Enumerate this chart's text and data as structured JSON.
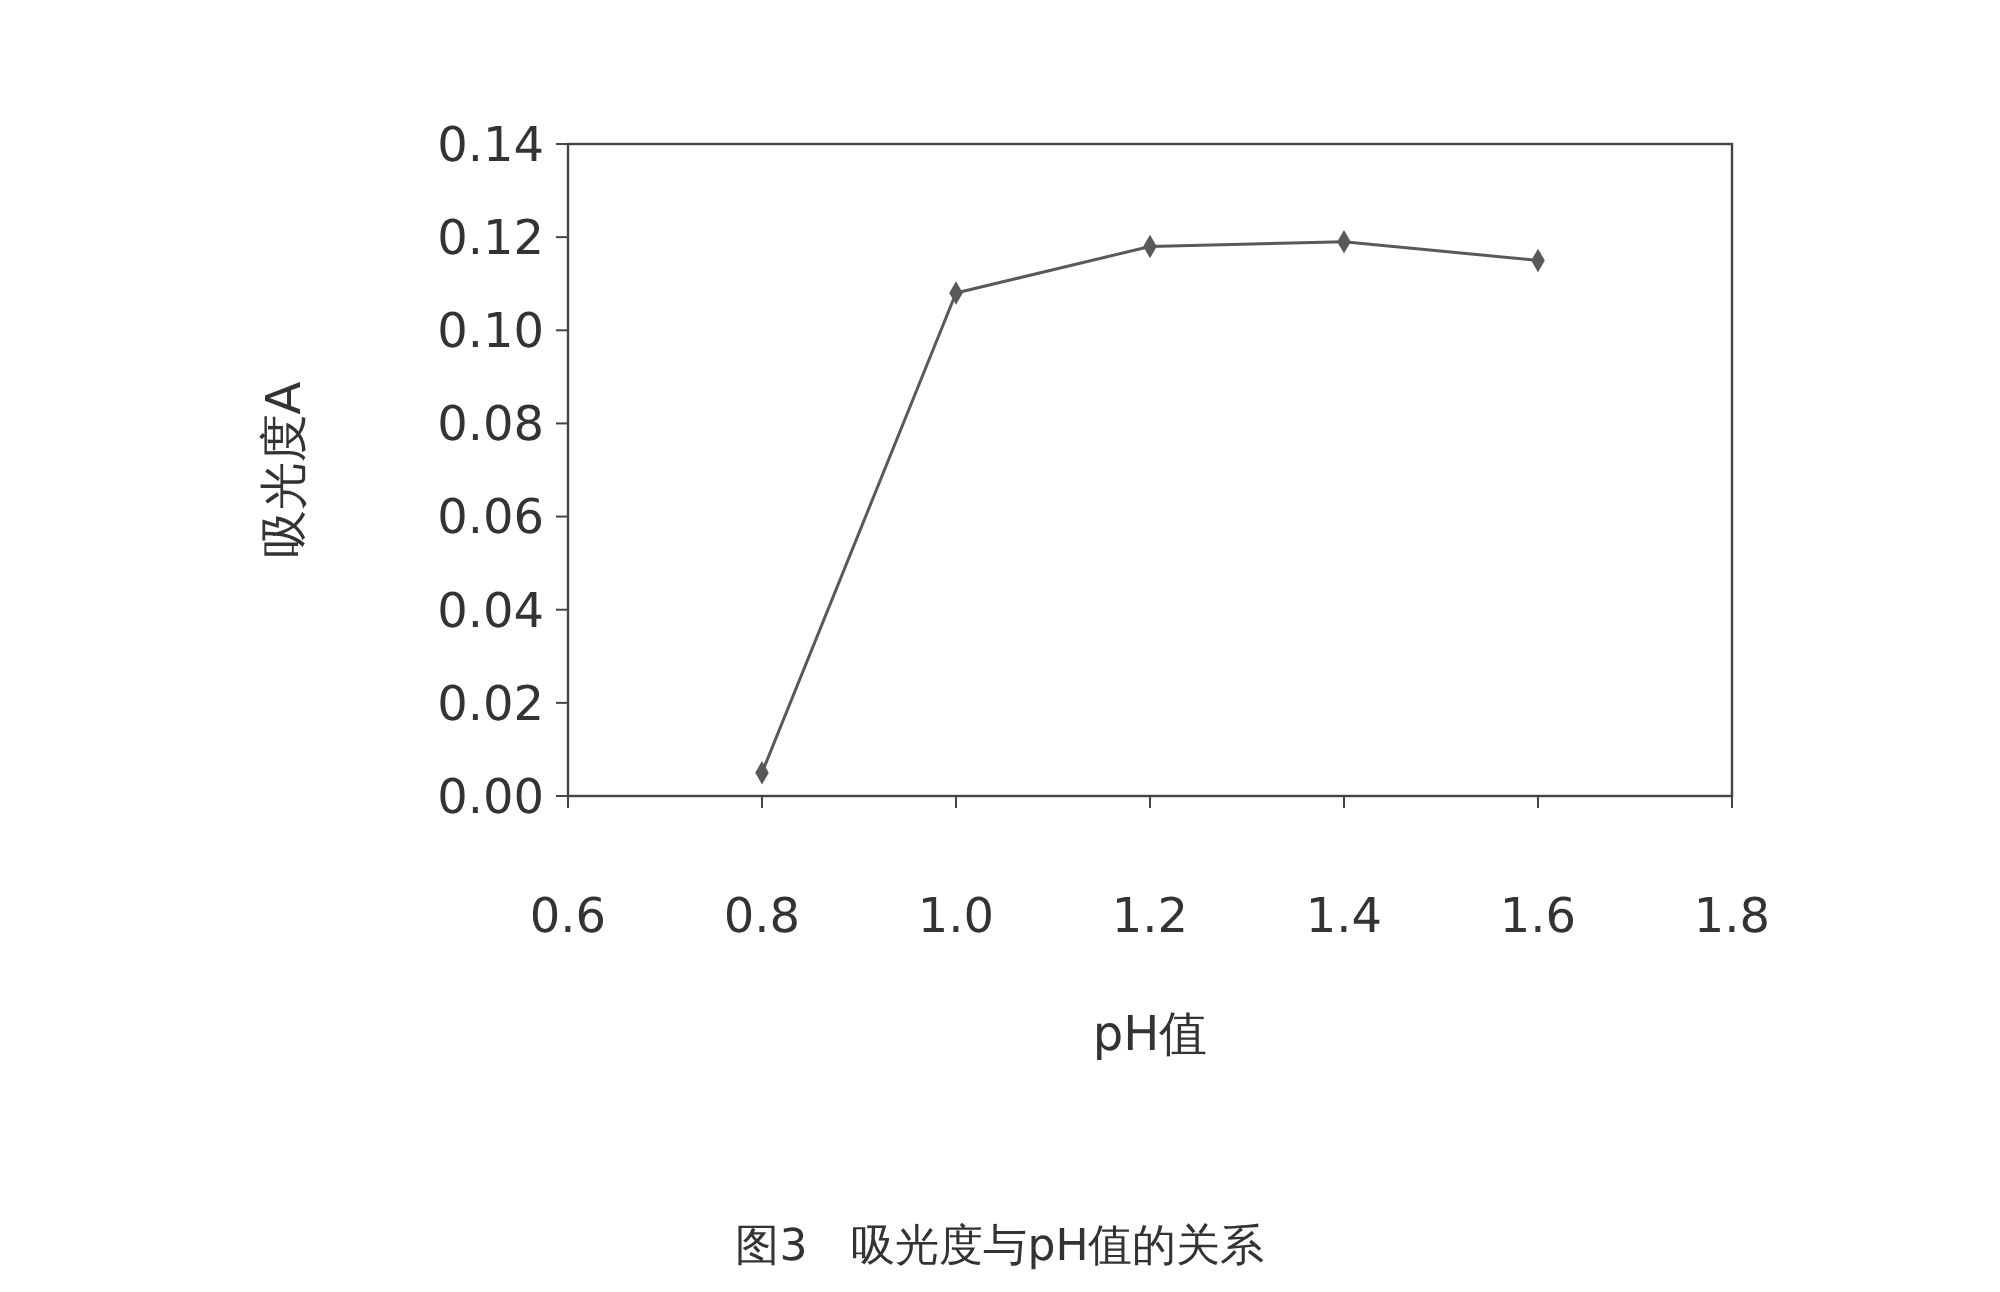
{
  "chart_data": {
    "type": "line",
    "title": "图3　吸光度与pH值的关系",
    "xlabel": "pH值",
    "ylabel": "吸光度A",
    "x": [
      0.8,
      1.0,
      1.2,
      1.4,
      1.6
    ],
    "series": [
      {
        "color": "#595959",
        "values": [
          0.005,
          0.108,
          0.118,
          0.119,
          0.115
        ]
      }
    ],
    "xlim": [
      0.6,
      1.8
    ],
    "xticks": [
      {
        "value": 0.6,
        "label": "0.6"
      },
      {
        "value": 0.8,
        "label": "0.8"
      },
      {
        "value": 1.0,
        "label": "1.0"
      },
      {
        "value": 1.2,
        "label": "1.2"
      },
      {
        "value": 1.4,
        "label": "1.4"
      },
      {
        "value": 1.6,
        "label": "1.6"
      },
      {
        "value": 1.8,
        "label": "1.8"
      }
    ],
    "ylim": [
      0,
      0.14
    ],
    "yticks": [
      {
        "value": 0,
        "label": "0.00"
      },
      {
        "value": 0.02,
        "label": "0.02"
      },
      {
        "value": 0.04,
        "label": "0.04"
      },
      {
        "value": 0.06,
        "label": "0.06"
      },
      {
        "value": 0.08,
        "label": "0.08"
      },
      {
        "value": 0.1,
        "label": "0.10"
      },
      {
        "value": 0.12,
        "label": "0.12"
      },
      {
        "value": 0.14,
        "label": "0.14"
      }
    ],
    "grid": false,
    "marker": "diamond",
    "line_style": "solid"
  }
}
